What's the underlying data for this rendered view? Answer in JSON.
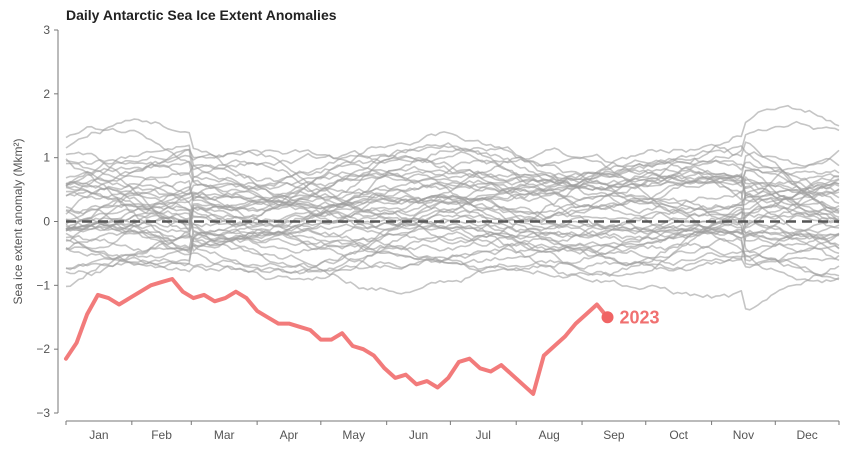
{
  "chart_data": {
    "type": "line",
    "title": "Daily Antarctic Sea Ice Extent Anomalies",
    "ylabel": "Sea ice extent anomaly (Mkm²)",
    "xlabel": "",
    "ylim": [
      -3,
      3
    ],
    "yticks": [
      "3",
      "2",
      "1",
      "0",
      "−1",
      "−2",
      "−3"
    ],
    "xlim": [
      1,
      365
    ],
    "months": [
      "Jan",
      "Feb",
      "Mar",
      "Apr",
      "May",
      "Jun",
      "Jul",
      "Aug",
      "Sep",
      "Oct",
      "Nov",
      "Dec"
    ],
    "reference_line": {
      "y": 0,
      "style": "dashed",
      "color": "#555555"
    },
    "background_series_color": "#9e9e9e",
    "highlight": {
      "name": "2023",
      "color": "#f06464",
      "x": [
        1,
        6,
        11,
        16,
        21,
        26,
        31,
        36,
        41,
        46,
        51,
        56,
        61,
        66,
        71,
        76,
        81,
        86,
        91,
        96,
        101,
        106,
        111,
        116,
        121,
        126,
        131,
        136,
        141,
        146,
        151,
        156,
        161,
        166,
        171,
        176,
        181,
        186,
        191,
        196,
        201,
        206,
        211,
        216,
        221,
        226,
        231,
        236,
        241,
        246,
        251,
        256
      ],
      "y": [
        -2.15,
        -1.9,
        -1.45,
        -1.15,
        -1.2,
        -1.3,
        -1.2,
        -1.1,
        -1.0,
        -0.95,
        -0.9,
        -1.1,
        -1.2,
        -1.15,
        -1.25,
        -1.2,
        -1.1,
        -1.2,
        -1.4,
        -1.5,
        -1.6,
        -1.6,
        -1.65,
        -1.7,
        -1.85,
        -1.85,
        -1.75,
        -1.95,
        -2.0,
        -2.1,
        -2.3,
        -2.45,
        -2.4,
        -2.55,
        -2.5,
        -2.6,
        -2.45,
        -2.2,
        -2.15,
        -2.3,
        -2.35,
        -2.25,
        -2.4,
        -2.55,
        -2.7,
        -2.1,
        -1.95,
        -1.8,
        -1.6,
        -1.45,
        -1.3,
        -1.5
      ],
      "label": "2023",
      "end_marker": {
        "x": 256,
        "y": -1.5
      }
    },
    "background_years": 44,
    "grid": false,
    "legend": "none"
  }
}
